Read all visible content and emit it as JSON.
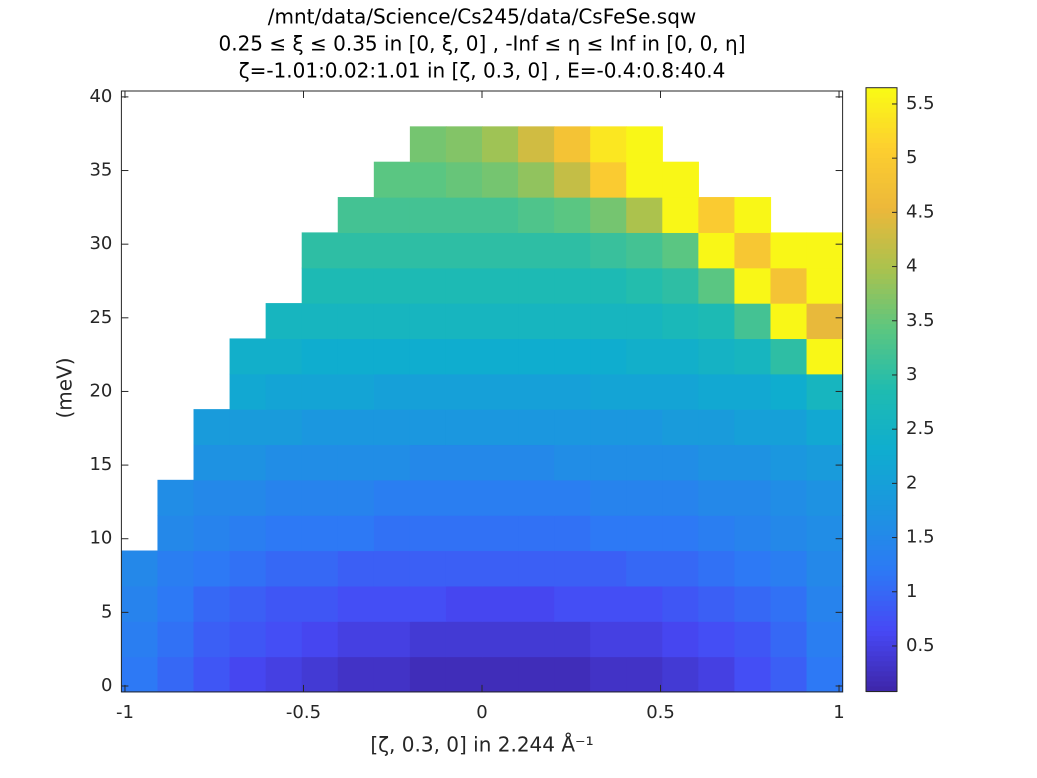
{
  "chart_data": {
    "type": "heatmap",
    "title": [
      "/mnt/data/Science/Cs245/data/CsFeSe.sqw",
      "0.25 ≤ ξ ≤ 0.35 in [0, ξ, 0] , -Inf ≤ η ≤ Inf in [0, 0, η]",
      "ζ=-1.01:0.02:1.01 in [ζ, 0.3, 0] , E=-0.4:0.8:40.4"
    ],
    "xlabel": "[ζ, 0.3, 0] in 2.244 Å⁻¹",
    "ylabel": "(meV)",
    "xlim": [
      -1.01,
      1.01
    ],
    "xticks": [
      -1,
      -0.5,
      0,
      0.5,
      1
    ],
    "ylim": [
      -0.4,
      40.4
    ],
    "yticks": [
      0,
      5,
      10,
      15,
      20,
      25,
      30,
      35,
      40
    ],
    "xbins": [
      -1.01,
      -0.909,
      -0.808,
      -0.707,
      -0.606,
      -0.505,
      -0.404,
      -0.303,
      -0.202,
      -0.101,
      0,
      0.101,
      0.202,
      0.303,
      0.404,
      0.505,
      0.606,
      0.707,
      0.808,
      0.909,
      1.01
    ],
    "ybins": [
      -0.4,
      2,
      4.4,
      6.8,
      9.2,
      11.6,
      14,
      16.4,
      18.8,
      21.2,
      23.6,
      26,
      28.4,
      30.8,
      33.2,
      35.6,
      38
    ],
    "colormap": "parula",
    "clim": [
      0.08,
      5.65
    ],
    "colorbar_ticks": [
      0.5,
      1,
      1.5,
      2,
      2.5,
      3,
      3.5,
      4,
      4.5,
      5,
      5.5
    ],
    "values": [
      [
        1.2,
        1.0,
        0.8,
        0.6,
        0.5,
        0.4,
        0.3,
        0.3,
        0.2,
        0.2,
        0.2,
        0.2,
        0.2,
        0.3,
        0.3,
        0.4,
        0.5,
        0.7,
        0.9,
        1.2
      ],
      [
        1.3,
        1.1,
        0.9,
        0.8,
        0.7,
        0.6,
        0.5,
        0.5,
        0.4,
        0.4,
        0.4,
        0.4,
        0.4,
        0.5,
        0.5,
        0.6,
        0.7,
        0.8,
        1.0,
        1.3
      ],
      [
        1.4,
        1.2,
        1.0,
        0.9,
        0.8,
        0.8,
        0.7,
        0.7,
        0.7,
        0.6,
        0.6,
        0.6,
        0.7,
        0.7,
        0.7,
        0.8,
        0.9,
        1.0,
        1.1,
        1.4
      ],
      [
        1.5,
        1.3,
        1.2,
        1.1,
        1.0,
        1.0,
        0.9,
        0.9,
        0.9,
        0.9,
        0.9,
        0.9,
        0.9,
        0.9,
        1.0,
        1.0,
        1.1,
        1.2,
        1.3,
        1.5
      ],
      [
        null,
        1.5,
        1.4,
        1.3,
        1.2,
        1.2,
        1.2,
        1.1,
        1.1,
        1.1,
        1.1,
        1.1,
        1.1,
        1.2,
        1.2,
        1.2,
        1.3,
        1.4,
        1.5,
        1.6
      ],
      [
        null,
        1.6,
        1.5,
        1.5,
        1.4,
        1.4,
        1.4,
        1.3,
        1.3,
        1.3,
        1.3,
        1.3,
        1.3,
        1.4,
        1.4,
        1.4,
        1.5,
        1.5,
        1.6,
        1.7
      ],
      [
        null,
        null,
        1.7,
        1.7,
        1.6,
        1.6,
        1.6,
        1.6,
        1.5,
        1.5,
        1.5,
        1.5,
        1.6,
        1.6,
        1.6,
        1.6,
        1.7,
        1.7,
        1.8,
        1.9
      ],
      [
        null,
        null,
        1.9,
        1.9,
        1.9,
        1.8,
        1.8,
        1.8,
        1.8,
        1.8,
        1.8,
        1.8,
        1.8,
        1.8,
        1.8,
        1.9,
        1.9,
        2.0,
        2.0,
        2.2
      ],
      [
        null,
        null,
        null,
        2.2,
        2.1,
        2.1,
        2.1,
        2.0,
        2.0,
        2.0,
        2.0,
        2.0,
        2.0,
        2.1,
        2.1,
        2.1,
        2.2,
        2.2,
        2.3,
        2.6
      ],
      [
        null,
        null,
        null,
        2.4,
        2.4,
        2.3,
        2.3,
        2.3,
        2.3,
        2.3,
        2.3,
        2.3,
        2.3,
        2.3,
        2.4,
        2.4,
        2.5,
        2.6,
        3.0,
        5.6
      ],
      [
        null,
        null,
        null,
        null,
        2.6,
        2.6,
        2.6,
        2.6,
        2.6,
        2.6,
        2.6,
        2.6,
        2.6,
        2.6,
        2.6,
        2.7,
        2.8,
        3.2,
        5.6,
        4.5
      ],
      [
        null,
        null,
        null,
        null,
        null,
        2.8,
        2.8,
        2.8,
        2.8,
        2.8,
        2.8,
        2.8,
        2.8,
        2.8,
        2.9,
        3.0,
        3.4,
        5.6,
        4.8,
        5.6
      ],
      [
        null,
        null,
        null,
        null,
        null,
        3.0,
        3.0,
        3.0,
        3.0,
        3.0,
        3.0,
        3.0,
        3.0,
        3.1,
        3.2,
        3.4,
        5.6,
        4.9,
        5.6,
        5.6
      ],
      [
        null,
        null,
        null,
        null,
        null,
        null,
        3.2,
        3.2,
        3.2,
        3.2,
        3.2,
        3.3,
        3.4,
        3.6,
        4.0,
        5.6,
        5.0,
        5.6,
        null,
        null
      ],
      [
        null,
        null,
        null,
        null,
        null,
        null,
        null,
        3.4,
        3.4,
        3.5,
        3.6,
        3.8,
        4.2,
        5.0,
        5.6,
        5.6,
        null,
        null,
        null,
        null
      ],
      [
        null,
        null,
        null,
        null,
        null,
        null,
        null,
        null,
        3.6,
        3.7,
        3.9,
        4.3,
        4.8,
        5.4,
        5.6,
        null,
        null,
        null,
        null,
        null
      ]
    ]
  }
}
